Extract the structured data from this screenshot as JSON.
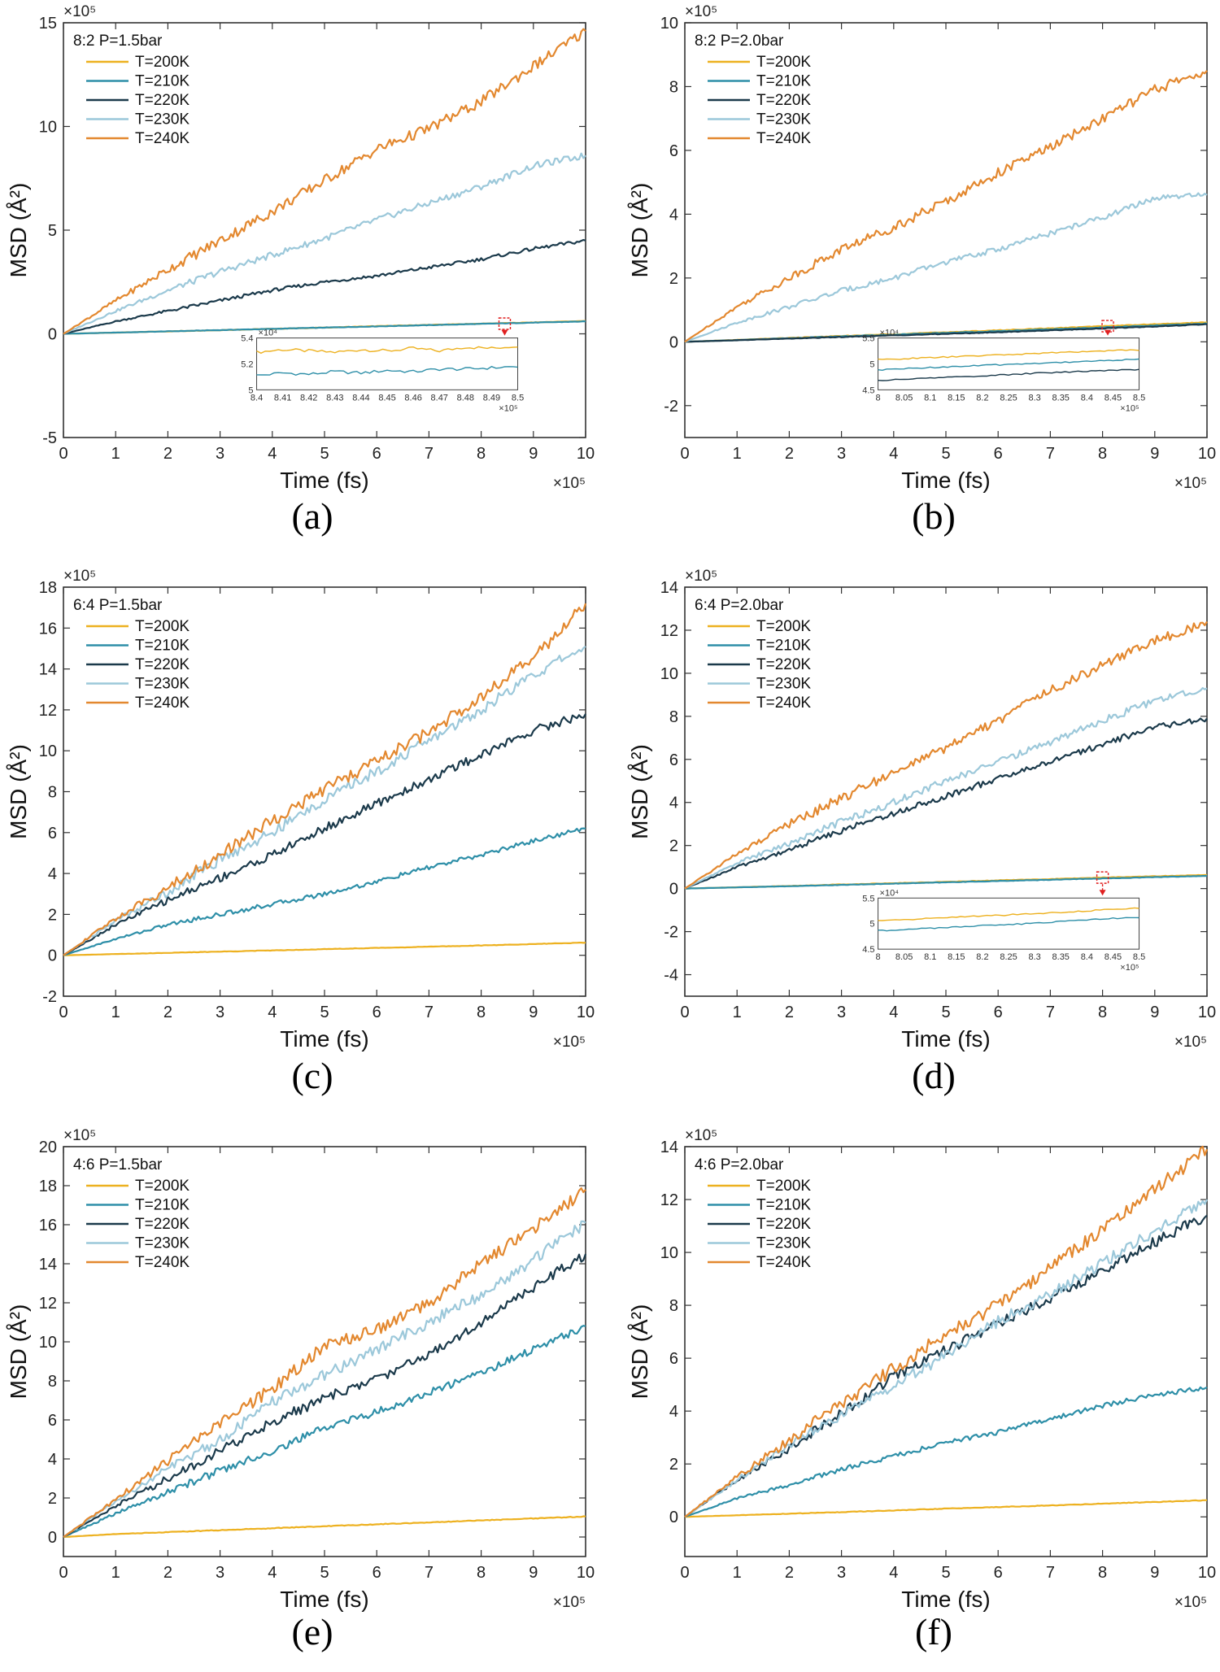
{
  "figure": {
    "captions": [
      "(a)",
      "(b)",
      "(c)",
      "(d)",
      "(e)",
      "(f)"
    ]
  },
  "colors": {
    "T=200K": "#EDB120",
    "T=210K": "#2E8FA8",
    "T=220K": "#1B3A4B",
    "T=230K": "#9CC8DA",
    "T=240K": "#E3882F",
    "inset_marker": "#E02020"
  },
  "chart_data": [
    {
      "type": "line",
      "panel": "(a)",
      "annotation": "8:2  P=1.5bar",
      "xlabel": "Time (fs)",
      "ylabel": "MSD (Å²)",
      "x_multiplier": "×10⁵",
      "y_multiplier": "×10⁵",
      "xlim": [
        0,
        10
      ],
      "ylim": [
        -5,
        15
      ],
      "xticks": [
        0,
        1,
        2,
        3,
        4,
        5,
        6,
        7,
        8,
        9,
        10
      ],
      "yticks": [
        -5,
        0,
        5,
        10,
        15
      ],
      "x": [
        0,
        1,
        2,
        3,
        4,
        5,
        6,
        7,
        8,
        9,
        10
      ],
      "series": [
        {
          "name": "T=200K",
          "values": [
            0,
            0.06,
            0.12,
            0.18,
            0.24,
            0.3,
            0.37,
            0.43,
            0.49,
            0.55,
            0.62
          ]
        },
        {
          "name": "T=210K",
          "values": [
            0,
            0.06,
            0.12,
            0.18,
            0.24,
            0.3,
            0.36,
            0.42,
            0.48,
            0.54,
            0.6
          ]
        },
        {
          "name": "T=220K",
          "values": [
            0,
            0.6,
            1.1,
            1.6,
            2.1,
            2.5,
            2.8,
            3.2,
            3.6,
            4.1,
            4.5
          ]
        },
        {
          "name": "T=230K",
          "values": [
            0,
            1.1,
            2.1,
            3.0,
            3.8,
            4.6,
            5.5,
            6.3,
            7.1,
            8.1,
            8.6
          ]
        },
        {
          "name": "T=240K",
          "values": [
            0,
            1.6,
            3.1,
            4.5,
            5.9,
            7.4,
            8.9,
            9.9,
            11.2,
            12.9,
            14.6
          ]
        }
      ],
      "inset": {
        "xlim": [
          8.4,
          8.5
        ],
        "ylim": [
          5.0,
          5.4
        ],
        "xticks": [
          "8.4",
          "8.41",
          "8.42",
          "8.43",
          "8.44",
          "8.45",
          "8.46",
          "8.47",
          "8.48",
          "8.49",
          "8.5"
        ],
        "yticks": [
          "5",
          "5.2",
          "5.4"
        ],
        "x_multiplier": "×10⁵",
        "y_multiplier": "×10⁴",
        "zoom_x": 8.45,
        "series": [
          {
            "name": "T=200K",
            "values": [
              5.29,
              5.31,
              5.3,
              5.29,
              5.31,
              5.3,
              5.32,
              5.3,
              5.33,
              5.32,
              5.34
            ]
          },
          {
            "name": "T=210K",
            "values": [
              5.11,
              5.13,
              5.12,
              5.14,
              5.13,
              5.15,
              5.14,
              5.16,
              5.16,
              5.17,
              5.18
            ]
          }
        ]
      }
    },
    {
      "type": "line",
      "panel": "(b)",
      "annotation": "8:2  P=2.0bar",
      "xlabel": "Time (fs)",
      "ylabel": "MSD (Å²)",
      "x_multiplier": "×10⁵",
      "y_multiplier": "×10⁵",
      "xlim": [
        0,
        10
      ],
      "ylim": [
        -3,
        10
      ],
      "xticks": [
        0,
        1,
        2,
        3,
        4,
        5,
        6,
        7,
        8,
        9,
        10
      ],
      "yticks": [
        -2,
        0,
        2,
        4,
        6,
        8,
        10
      ],
      "x": [
        0,
        1,
        2,
        3,
        4,
        5,
        6,
        7,
        8,
        9,
        10
      ],
      "series": [
        {
          "name": "T=200K",
          "values": [
            0,
            0.06,
            0.12,
            0.18,
            0.24,
            0.3,
            0.36,
            0.42,
            0.49,
            0.55,
            0.61
          ]
        },
        {
          "name": "T=210K",
          "values": [
            0,
            0.055,
            0.11,
            0.17,
            0.22,
            0.28,
            0.33,
            0.39,
            0.45,
            0.51,
            0.57
          ]
        },
        {
          "name": "T=220K",
          "values": [
            0,
            0.05,
            0.1,
            0.15,
            0.2,
            0.25,
            0.3,
            0.36,
            0.42,
            0.48,
            0.55
          ]
        },
        {
          "name": "T=230K",
          "values": [
            0,
            0.6,
            1.1,
            1.6,
            2.0,
            2.5,
            2.9,
            3.4,
            3.9,
            4.5,
            4.6
          ]
        },
        {
          "name": "T=240K",
          "values": [
            0,
            1.1,
            2.0,
            2.9,
            3.6,
            4.4,
            5.3,
            6.1,
            7.0,
            7.9,
            8.5
          ]
        }
      ],
      "inset": {
        "xlim": [
          8.0,
          8.5
        ],
        "ylim": [
          4.5,
          5.5
        ],
        "xticks": [
          "8",
          "8.05",
          "8.1",
          "8.15",
          "8.2",
          "8.25",
          "8.3",
          "8.35",
          "8.4",
          "8.45",
          "8.5"
        ],
        "yticks": [
          "4.5",
          "5",
          "5.5"
        ],
        "x_multiplier": "×10⁵",
        "y_multiplier": "×10⁴",
        "zoom_x": 8.1,
        "series": [
          {
            "name": "T=200K",
            "values": [
              5.08,
              5.1,
              5.12,
              5.14,
              5.16,
              5.18,
              5.2,
              5.22,
              5.24,
              5.26,
              5.27
            ]
          },
          {
            "name": "T=210K",
            "values": [
              4.88,
              4.91,
              4.93,
              4.95,
              4.97,
              4.99,
              5.01,
              5.03,
              5.05,
              5.07,
              5.09
            ]
          },
          {
            "name": "T=220K",
            "values": [
              4.68,
              4.7,
              4.73,
              4.75,
              4.77,
              4.79,
              4.82,
              4.84,
              4.86,
              4.88,
              4.89
            ]
          }
        ]
      }
    },
    {
      "type": "line",
      "panel": "(c)",
      "annotation": "6:4  P=1.5bar",
      "xlabel": "Time (fs)",
      "ylabel": "MSD (Å²)",
      "x_multiplier": "×10⁵",
      "y_multiplier": "×10⁵",
      "xlim": [
        0,
        10
      ],
      "ylim": [
        -2,
        18
      ],
      "xticks": [
        0,
        1,
        2,
        3,
        4,
        5,
        6,
        7,
        8,
        9,
        10
      ],
      "yticks": [
        -2,
        0,
        2,
        4,
        6,
        8,
        10,
        12,
        14,
        16,
        18
      ],
      "x": [
        0,
        1,
        2,
        3,
        4,
        5,
        6,
        7,
        8,
        9,
        10
      ],
      "series": [
        {
          "name": "T=200K",
          "values": [
            0,
            0.06,
            0.12,
            0.18,
            0.24,
            0.3,
            0.36,
            0.42,
            0.48,
            0.55,
            0.62
          ]
        },
        {
          "name": "T=210K",
          "values": [
            0,
            0.8,
            1.5,
            2.0,
            2.5,
            3.0,
            3.6,
            4.3,
            4.9,
            5.6,
            6.2
          ]
        },
        {
          "name": "T=220K",
          "values": [
            0,
            1.5,
            2.7,
            3.8,
            4.9,
            6.2,
            7.4,
            8.6,
            9.8,
            11.0,
            11.8
          ]
        },
        {
          "name": "T=230K",
          "values": [
            0,
            1.7,
            3.1,
            4.7,
            6.0,
            7.6,
            9.0,
            10.5,
            12.0,
            13.7,
            15.1
          ]
        },
        {
          "name": "T=240K",
          "values": [
            0,
            1.8,
            3.3,
            4.9,
            6.6,
            8.1,
            9.5,
            10.9,
            12.7,
            14.5,
            17.2
          ]
        }
      ]
    },
    {
      "type": "line",
      "panel": "(d)",
      "annotation": "6:4  P=2.0bar",
      "xlabel": "Time (fs)",
      "ylabel": "MSD (Å²)",
      "x_multiplier": "×10⁵",
      "y_multiplier": "×10⁵",
      "xlim": [
        0,
        10
      ],
      "ylim": [
        -5,
        14
      ],
      "xticks": [
        0,
        1,
        2,
        3,
        4,
        5,
        6,
        7,
        8,
        9,
        10
      ],
      "yticks": [
        -4,
        -2,
        0,
        2,
        4,
        6,
        8,
        10,
        12,
        14
      ],
      "x": [
        0,
        1,
        2,
        3,
        4,
        5,
        6,
        7,
        8,
        9,
        10
      ],
      "series": [
        {
          "name": "T=200K",
          "values": [
            0,
            0.06,
            0.12,
            0.19,
            0.25,
            0.31,
            0.38,
            0.44,
            0.51,
            0.57,
            0.63
          ]
        },
        {
          "name": "T=210K",
          "values": [
            0,
            0.055,
            0.11,
            0.17,
            0.23,
            0.29,
            0.35,
            0.41,
            0.47,
            0.53,
            0.59
          ]
        },
        {
          "name": "T=220K",
          "values": [
            0,
            1.0,
            1.8,
            2.7,
            3.5,
            4.3,
            5.1,
            5.9,
            6.7,
            7.5,
            7.9
          ]
        },
        {
          "name": "T=230K",
          "values": [
            0,
            1.2,
            2.1,
            3.1,
            4.0,
            5.0,
            5.9,
            6.8,
            7.8,
            8.7,
            9.3
          ]
        },
        {
          "name": "T=240K",
          "values": [
            0,
            1.6,
            3.0,
            4.2,
            5.4,
            6.5,
            7.8,
            9.2,
            10.4,
            11.5,
            12.4
          ]
        }
      ],
      "inset": {
        "xlim": [
          8.0,
          8.5
        ],
        "ylim": [
          4.5,
          5.5
        ],
        "xticks": [
          "8",
          "8.05",
          "8.1",
          "8.15",
          "8.2",
          "8.25",
          "8.3",
          "8.35",
          "8.4",
          "8.45",
          "8.5"
        ],
        "yticks": [
          "4.5",
          "5",
          "5.5"
        ],
        "x_multiplier": "×10⁵",
        "y_multiplier": "×10⁴",
        "zoom_x": 8.0,
        "series": [
          {
            "name": "T=200K",
            "values": [
              5.06,
              5.08,
              5.1,
              5.13,
              5.15,
              5.17,
              5.2,
              5.22,
              5.25,
              5.28,
              5.3
            ]
          },
          {
            "name": "T=210K",
            "values": [
              4.86,
              4.88,
              4.91,
              4.93,
              4.96,
              4.98,
              5.01,
              5.04,
              5.07,
              5.1,
              5.12
            ]
          }
        ]
      }
    },
    {
      "type": "line",
      "panel": "(e)",
      "annotation": "4:6  P=1.5bar",
      "xlabel": "Time (fs)",
      "ylabel": "MSD (Å²)",
      "x_multiplier": "×10⁵",
      "y_multiplier": "×10⁵",
      "xlim": [
        0,
        10
      ],
      "ylim": [
        -1,
        20
      ],
      "xticks": [
        0,
        1,
        2,
        3,
        4,
        5,
        6,
        7,
        8,
        9,
        10
      ],
      "yticks": [
        0,
        2,
        4,
        6,
        8,
        10,
        12,
        14,
        16,
        18,
        20
      ],
      "x": [
        0,
        1,
        2,
        3,
        4,
        5,
        6,
        7,
        8,
        9,
        10
      ],
      "series": [
        {
          "name": "T=200K",
          "values": [
            0,
            0.15,
            0.25,
            0.35,
            0.45,
            0.55,
            0.65,
            0.75,
            0.85,
            0.95,
            1.05
          ]
        },
        {
          "name": "T=210K",
          "values": [
            0,
            1.2,
            2.3,
            3.4,
            4.4,
            5.6,
            6.4,
            7.4,
            8.4,
            9.6,
            10.8
          ]
        },
        {
          "name": "T=220K",
          "values": [
            0,
            1.6,
            3.0,
            4.4,
            5.9,
            7.1,
            8.1,
            9.4,
            11.0,
            12.8,
            14.5
          ]
        },
        {
          "name": "T=230K",
          "values": [
            0,
            1.8,
            3.5,
            5.0,
            6.9,
            8.3,
            9.6,
            11.0,
            12.4,
            14.2,
            16.1
          ]
        },
        {
          "name": "T=240K",
          "values": [
            0,
            1.9,
            3.9,
            5.8,
            7.6,
            9.8,
            10.6,
            12.0,
            14.0,
            15.8,
            17.8
          ]
        }
      ]
    },
    {
      "type": "line",
      "panel": "(f)",
      "annotation": "4:6  P=2.0bar",
      "xlabel": "Time (fs)",
      "ylabel": "MSD (Å²)",
      "x_multiplier": "×10⁵",
      "y_multiplier": "×10⁵",
      "xlim": [
        0,
        10
      ],
      "ylim": [
        -1.5,
        14
      ],
      "xticks": [
        0,
        1,
        2,
        3,
        4,
        5,
        6,
        7,
        8,
        9,
        10
      ],
      "yticks": [
        0,
        2,
        4,
        6,
        8,
        10,
        12,
        14
      ],
      "x": [
        0,
        1,
        2,
        3,
        4,
        5,
        6,
        7,
        8,
        9,
        10
      ],
      "series": [
        {
          "name": "T=200K",
          "values": [
            0,
            0.06,
            0.12,
            0.18,
            0.24,
            0.31,
            0.37,
            0.43,
            0.5,
            0.56,
            0.63
          ]
        },
        {
          "name": "T=210K",
          "values": [
            0,
            0.7,
            1.2,
            1.8,
            2.3,
            2.8,
            3.2,
            3.7,
            4.2,
            4.6,
            4.9
          ]
        },
        {
          "name": "T=220K",
          "values": [
            0,
            1.4,
            2.6,
            3.9,
            5.3,
            6.3,
            7.3,
            8.3,
            9.3,
            10.4,
            11.4
          ]
        },
        {
          "name": "T=230K",
          "values": [
            0,
            1.4,
            2.7,
            3.8,
            5.0,
            6.1,
            7.4,
            8.4,
            9.6,
            10.8,
            12.0
          ]
        },
        {
          "name": "T=240K",
          "values": [
            0,
            1.5,
            2.9,
            4.3,
            5.6,
            6.9,
            8.0,
            9.4,
            10.9,
            12.4,
            13.9
          ]
        }
      ]
    }
  ]
}
